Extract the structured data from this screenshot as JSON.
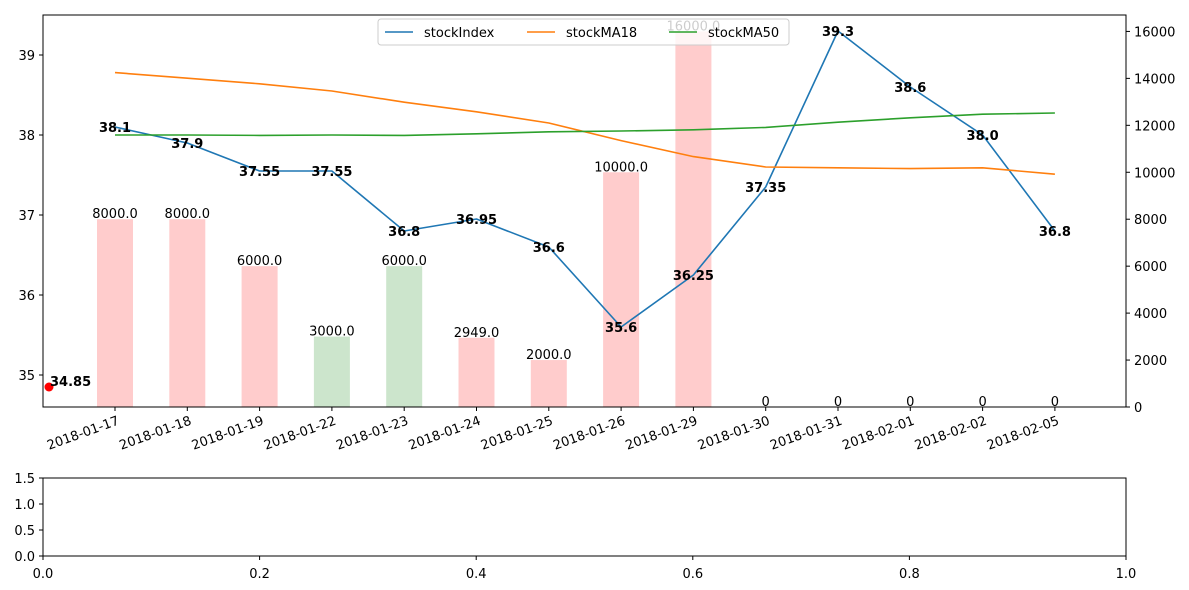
{
  "chart_data": [
    {
      "type": "line",
      "categories": [
        "2018-01-17",
        "2018-01-18",
        "2018-01-19",
        "2018-01-22",
        "2018-01-23",
        "2018-01-24",
        "2018-01-25",
        "2018-01-26",
        "2018-01-29",
        "2018-01-30",
        "2018-01-31",
        "2018-02-01",
        "2018-02-02",
        "2018-02-05"
      ],
      "ylim": [
        34.6,
        39.5
      ],
      "y_ticks": [
        35,
        36,
        37,
        38,
        39
      ],
      "y2lim": [
        0,
        16700
      ],
      "y2_ticks": [
        0,
        2000,
        4000,
        6000,
        8000,
        10000,
        12000,
        14000,
        16000
      ],
      "legend": "top-center",
      "series": [
        {
          "name": "stockIndex",
          "color": "#1f77b4",
          "values": [
            38.1,
            37.9,
            37.55,
            37.55,
            36.8,
            36.95,
            36.6,
            35.6,
            36.25,
            37.35,
            39.3,
            38.6,
            38.0,
            36.8
          ],
          "point_labels": [
            "38.1",
            "37.9",
            "37.55",
            "37.55",
            "36.8",
            "36.95",
            "36.6",
            "35.6",
            "36.25",
            "37.35",
            "39.3",
            "38.6",
            "38.0",
            "36.8"
          ]
        },
        {
          "name": "stockMA18",
          "color": "#ff7f0e",
          "values": [
            38.78,
            38.71,
            38.64,
            38.55,
            38.41,
            38.29,
            38.15,
            37.93,
            37.73,
            37.6,
            37.59,
            37.58,
            37.59,
            37.51
          ]
        },
        {
          "name": "stockMA50",
          "color": "#2ca02c",
          "values": [
            38.0,
            38.0,
            37.995,
            38.0,
            37.995,
            38.015,
            38.04,
            38.05,
            38.065,
            38.095,
            38.16,
            38.215,
            38.26,
            38.275
          ]
        }
      ],
      "volume_bars": {
        "values": [
          8000,
          8000,
          6000,
          3000,
          6000,
          2949,
          2000,
          10000,
          16000,
          0,
          0,
          0,
          0,
          0
        ],
        "labels": [
          "8000.0",
          "8000.0",
          "6000.0",
          "3000.0",
          "6000.0",
          "2949.0",
          "2000.0",
          "10000.0",
          "16000.0",
          "0",
          "0",
          "0",
          "0",
          "0"
        ],
        "colors": [
          "#ffcccc",
          "#ffcccc",
          "#ffcccc",
          "#cce5cc",
          "#cce5cc",
          "#ffcccc",
          "#ffcccc",
          "#ffcccc",
          "#ffcccc",
          "#ffcccc",
          "#ffcccc",
          "#ffcccc",
          "#ffcccc",
          "#ffcccc"
        ]
      },
      "marker": {
        "value": 34.85,
        "label": "34.85",
        "color": "#ff0000"
      }
    },
    {
      "type": "line",
      "xlim": [
        0.0,
        1.0
      ],
      "ylim": [
        0.0,
        1.5
      ],
      "x_ticks": [
        "0.0",
        "0.2",
        "0.4",
        "0.6",
        "0.8",
        "1.0"
      ],
      "y_ticks": [
        "0.0",
        "0.5",
        "1.0",
        "1.5"
      ],
      "series": []
    }
  ]
}
